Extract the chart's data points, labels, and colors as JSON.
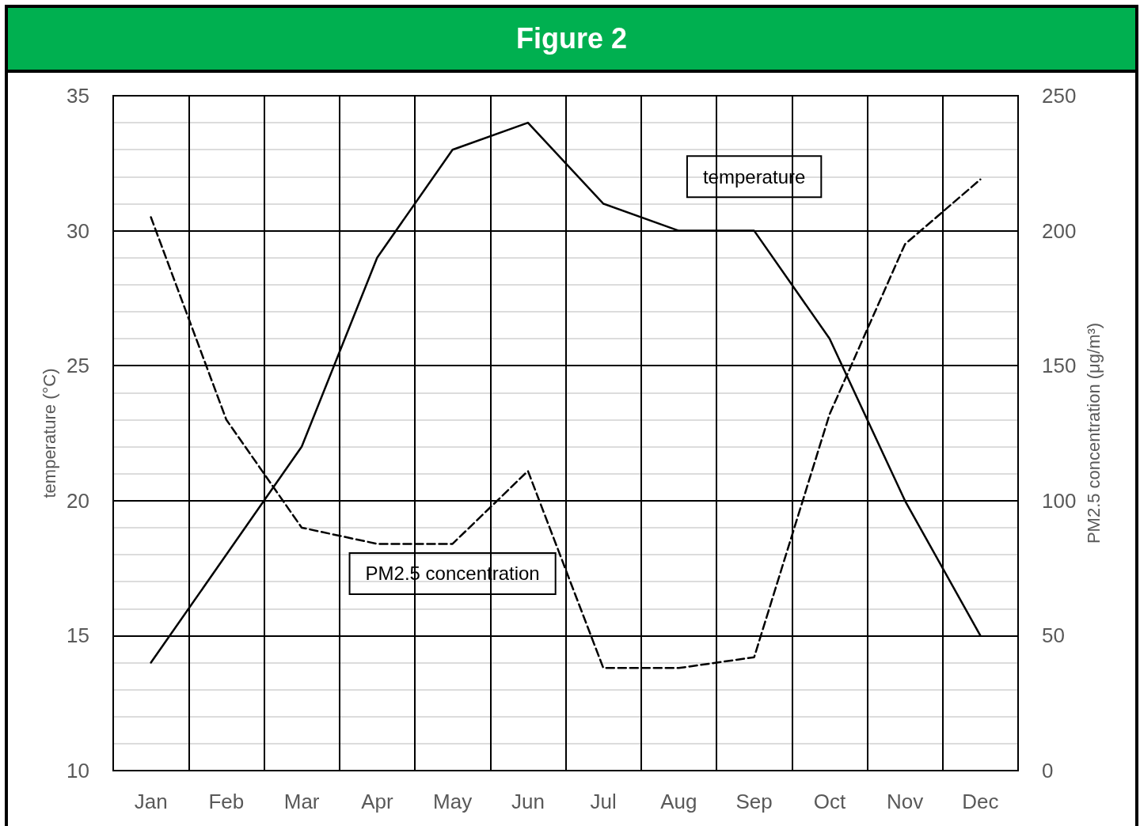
{
  "chart_data": {
    "type": "line",
    "title": "Figure 2",
    "ylabel": "temperature (°C)",
    "y2label": "PM2.5 concentration (μg/m³)",
    "categories": [
      "Jan",
      "Feb",
      "Mar",
      "Apr",
      "May",
      "Jun",
      "Jul",
      "Aug",
      "Sep",
      "Oct",
      "Nov",
      "Dec"
    ],
    "series": [
      {
        "name": "temperature",
        "color": "#000000",
        "line_style": "solid",
        "values": [
          14,
          18,
          22,
          29,
          33,
          34,
          31,
          30,
          30,
          26,
          20,
          15
        ]
      },
      {
        "name": "PM2.5 concentration",
        "color": "#000000",
        "line_style": "dashed",
        "axis": "y2",
        "values": [
          205,
          130,
          90,
          84,
          84,
          111,
          38,
          38,
          42,
          132,
          195,
          219
        ]
      }
    ],
    "ylim": [
      10,
      35
    ],
    "yticks": [
      10,
      15,
      20,
      25,
      30,
      35
    ],
    "y2lim": [
      0,
      250
    ],
    "y2ticks": [
      0,
      50,
      100,
      150,
      200,
      250
    ],
    "grid": true,
    "marker": "none",
    "legend": false
  }
}
